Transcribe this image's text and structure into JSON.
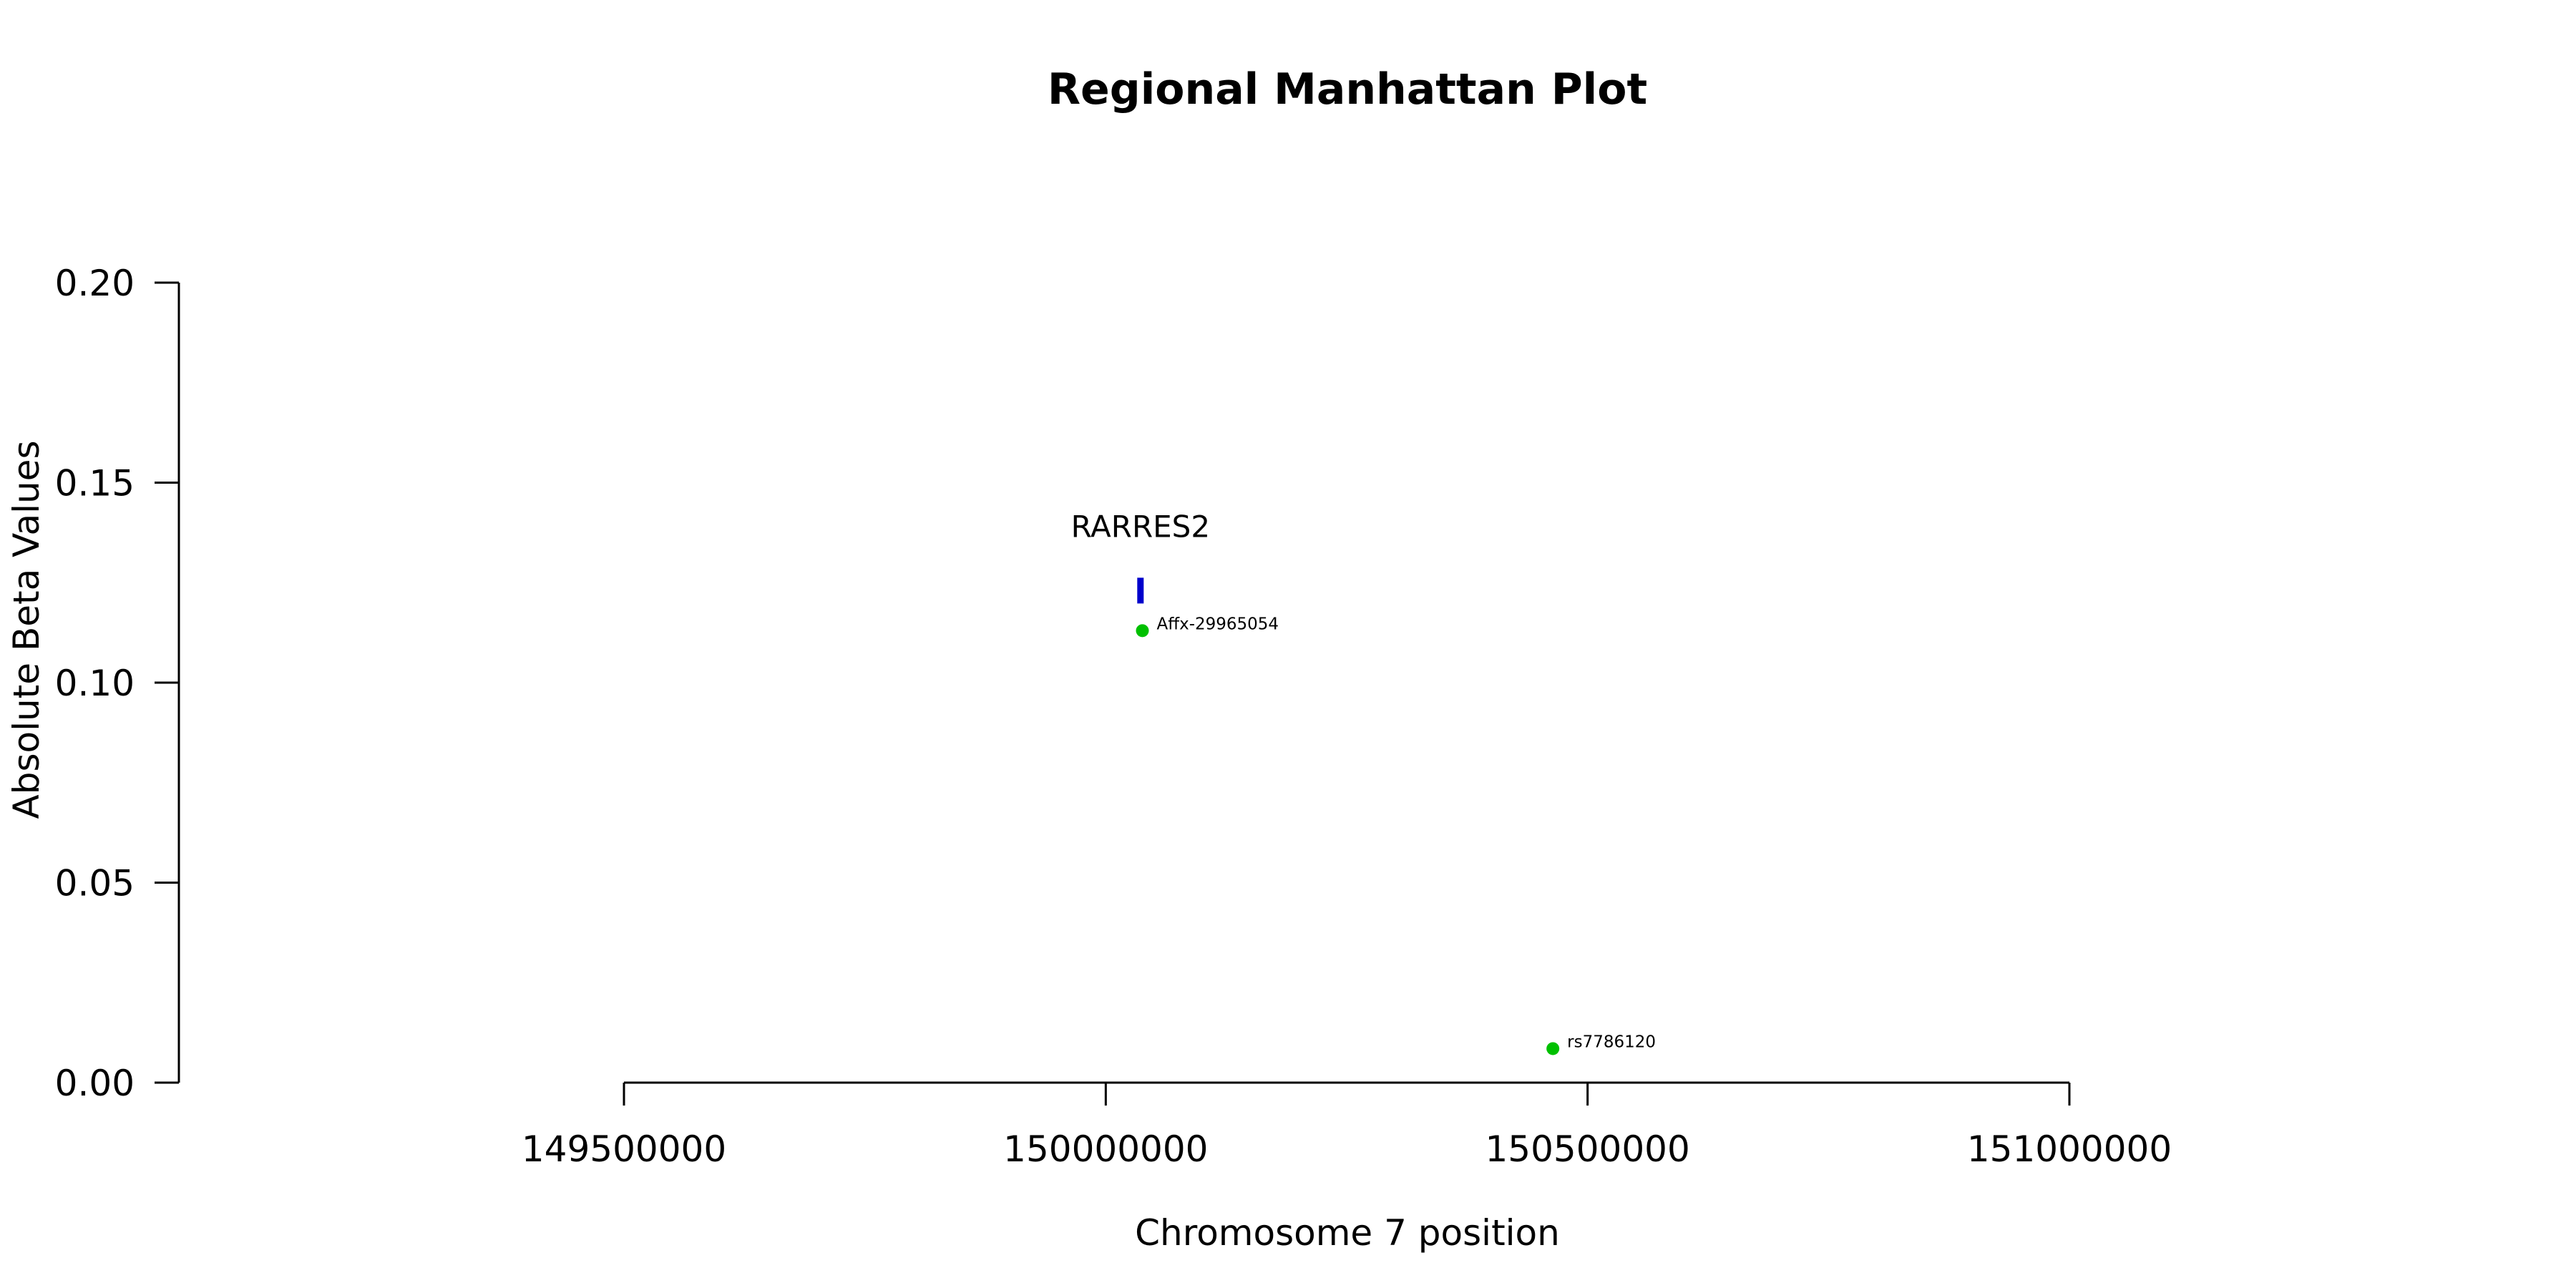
{
  "chart_data": {
    "type": "scatter",
    "title": "Regional Manhattan Plot",
    "xlabel": "Chromosome 7 position",
    "ylabel": "Absolute Beta Values",
    "xlim": [
      149500000,
      151000000
    ],
    "ylim": [
      0,
      0.2
    ],
    "x_ticks": [
      149500000,
      150000000,
      150500000,
      151000000
    ],
    "x_tick_labels": [
      "149500000",
      "150000000",
      "150500000",
      "151000000"
    ],
    "y_ticks": [
      0,
      0.05,
      0.1,
      0.15,
      0.2
    ],
    "y_tick_labels": [
      "0.00",
      "0.05",
      "0.10",
      "0.15",
      "0.20"
    ],
    "grid": false,
    "points": [
      {
        "x": 150038000,
        "y": 0.113,
        "label": "Affx-29965054",
        "color": "#00c000"
      },
      {
        "x": 150464000,
        "y": 0.0085,
        "label": "rs7786120",
        "color": "#00c000"
      }
    ],
    "genes": [
      {
        "name": "RARRES2",
        "x": 150036000,
        "y": 0.123,
        "color": "#0000cc"
      }
    ]
  }
}
